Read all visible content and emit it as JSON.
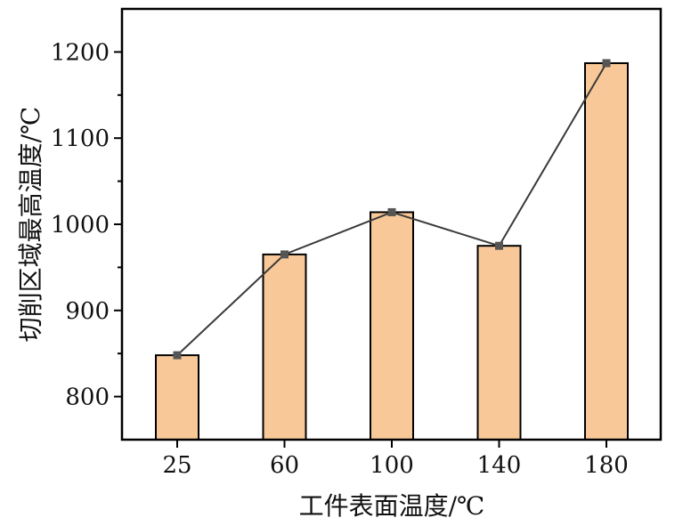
{
  "chart_data": {
    "type": "bar",
    "title": "",
    "xlabel": "工件表面温度/℃",
    "ylabel": "切削区域最高温度/℃",
    "categories": [
      "25",
      "60",
      "100",
      "140",
      "180"
    ],
    "values": [
      848,
      965,
      1014,
      975,
      1187
    ],
    "line_overlay": true,
    "ylim": [
      750,
      1250
    ],
    "yticks": [
      800,
      900,
      1000,
      1100,
      1200
    ],
    "grid": false,
    "legend": "none",
    "colors": {
      "bar_fill": "#f9c898",
      "bar_stroke": "#000000",
      "line": "#3a3a3a",
      "marker": "#555555",
      "axis": "#000000"
    }
  }
}
